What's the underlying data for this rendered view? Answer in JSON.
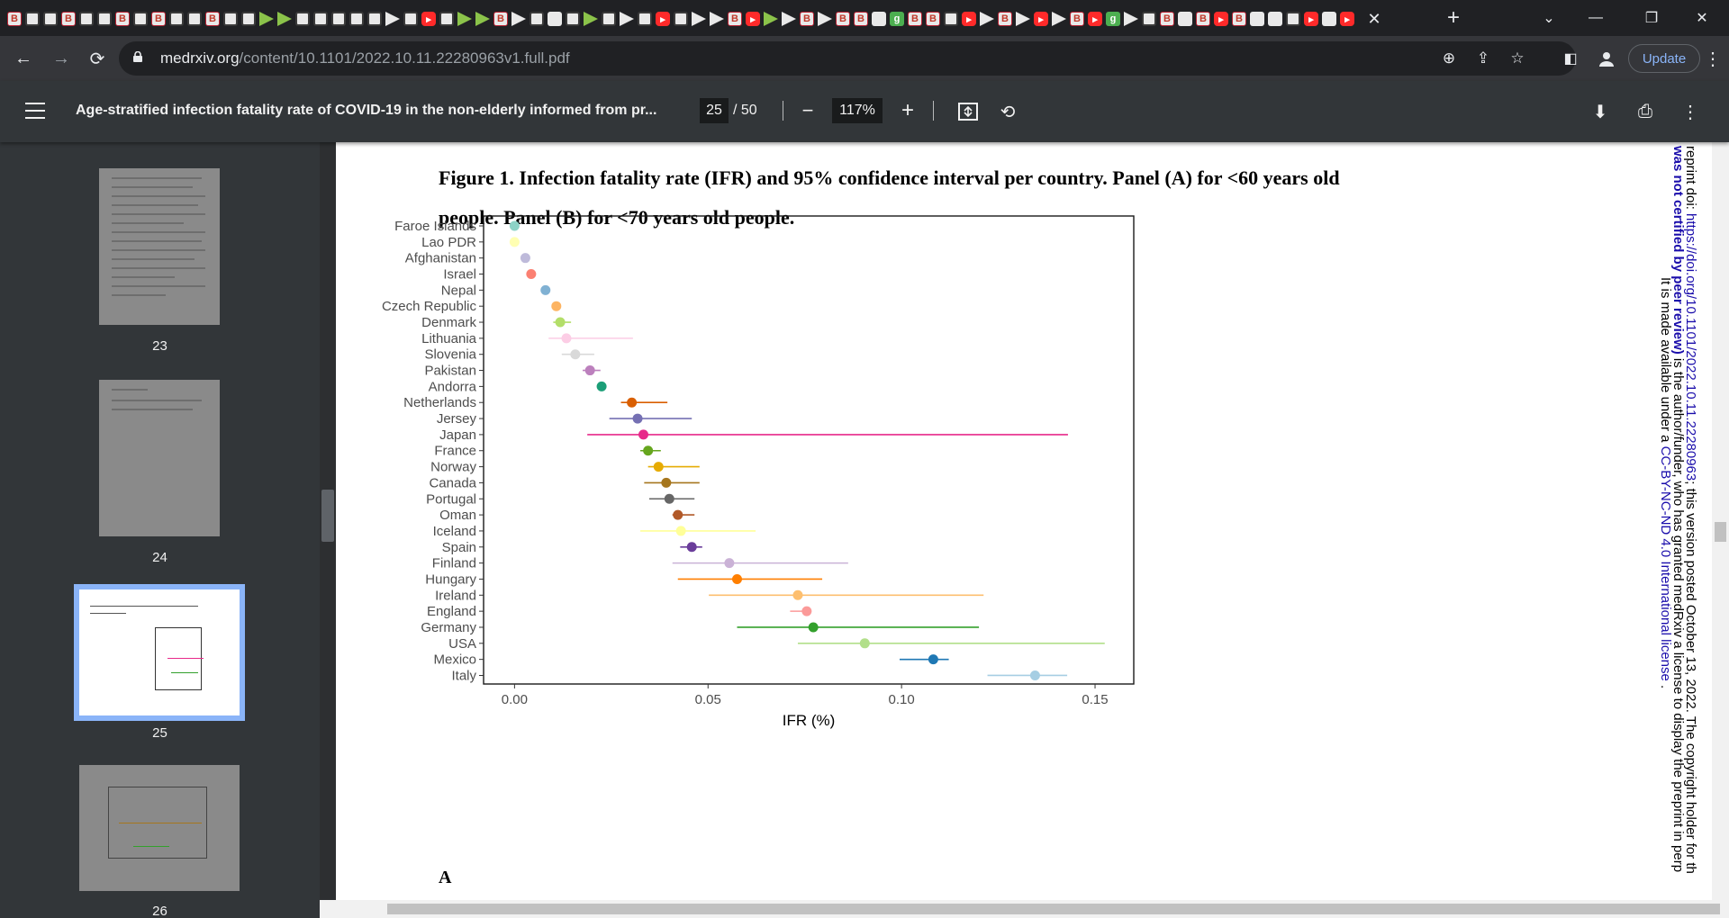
{
  "browser": {
    "tab_favicons": [
      "b",
      "s",
      "s",
      "b",
      "s",
      "s",
      "b",
      "s",
      "b",
      "s",
      "s",
      "b",
      "s",
      "s",
      "p",
      "p",
      "s",
      "s",
      "s",
      "s",
      "s",
      "d",
      "s",
      "y",
      "s",
      "p",
      "p",
      "b",
      "d",
      "s",
      "c",
      "s",
      "p",
      "s",
      "d",
      "s",
      "y",
      "s",
      "d",
      "d",
      "b",
      "y",
      "p",
      "d",
      "b",
      "d",
      "b",
      "b",
      "c",
      "g",
      "b",
      "b",
      "s",
      "y",
      "d",
      "b",
      "d",
      "y",
      "d",
      "b",
      "y",
      "g",
      "d",
      "s",
      "b",
      "c",
      "b",
      "y",
      "b",
      "c",
      "c",
      "s",
      "y",
      "c",
      "y"
    ],
    "active_tab_close": "✕",
    "url_host": "medrxiv.org",
    "url_path": "/content/10.1101/2022.10.11.22280963v1.full.pdf",
    "update_label": "Update"
  },
  "pdf_toolbar": {
    "title": "Age-stratified infection fatality rate of COVID-19 in the non-elderly informed from pr...",
    "current_page": "25",
    "total_pages": "/  50",
    "zoom": "117%"
  },
  "sidebar": {
    "thumbnails": [
      {
        "label": "23",
        "selected": false
      },
      {
        "label": "24",
        "selected": false
      },
      {
        "label": "25",
        "selected": true
      },
      {
        "label": "26",
        "selected": false
      }
    ]
  },
  "page": {
    "figure_caption": "Figure 1. Infection fatality rate (IFR) and 95% confidence interval per country. Panel (A) for <60 years old people. Panel (B) for <70 years old people.",
    "panel_label": "A",
    "preprint_line1_a": "reprint doi: ",
    "preprint_line1_link": "https://doi.org/10.1101/2022.10.11.22280963",
    "preprint_line1_b": "; this version posted October 13, 2022. The copyright holder for th",
    "preprint_line2_a": "was not certified by peer review)",
    "preprint_line2_b": " is the author/funder, who has granted medRxiv a license to display the preprint in perp",
    "preprint_line3_a": "It is made available under a ",
    "preprint_line3_link": "CC-BY-NC-ND 4.0 International license",
    "preprint_line3_b": " ."
  },
  "chart_data": {
    "type": "scatter",
    "subtype": "forest-plot",
    "xlabel": "IFR (%)",
    "xlim": [
      -0.008,
      0.16
    ],
    "xticks": [
      0.0,
      0.05,
      0.1,
      0.15
    ],
    "xtick_labels": [
      "0.00",
      "0.05",
      "0.10",
      "0.15"
    ],
    "grid": false,
    "legend": "none",
    "rows": [
      {
        "country": "Faroe Islands",
        "ifr": 0.0,
        "lo": 0.0,
        "hi": 0.0,
        "color": "#8dd3c7"
      },
      {
        "country": "Lao PDR",
        "ifr": 0.0,
        "lo": 0.0,
        "hi": 0.0,
        "color": "#ffffb3"
      },
      {
        "country": "Afghanistan",
        "ifr": 0.0028,
        "lo": 0.0028,
        "hi": 0.0028,
        "color": "#bebada"
      },
      {
        "country": "Israel",
        "ifr": 0.0043,
        "lo": 0.0043,
        "hi": 0.0043,
        "color": "#fb8072"
      },
      {
        "country": "Nepal",
        "ifr": 0.008,
        "lo": 0.008,
        "hi": 0.008,
        "color": "#80b1d3"
      },
      {
        "country": "Czech Republic",
        "ifr": 0.0108,
        "lo": 0.0108,
        "hi": 0.0108,
        "color": "#fdb462"
      },
      {
        "country": "Denmark",
        "ifr": 0.0118,
        "lo": 0.01,
        "hi": 0.0146,
        "color": "#b3de69"
      },
      {
        "country": "Lithuania",
        "ifr": 0.0134,
        "lo": 0.0088,
        "hi": 0.0306,
        "color": "#fccde5"
      },
      {
        "country": "Slovenia",
        "ifr": 0.0157,
        "lo": 0.0122,
        "hi": 0.0206,
        "color": "#d9d9d9"
      },
      {
        "country": "Pakistan",
        "ifr": 0.0195,
        "lo": 0.0176,
        "hi": 0.0222,
        "color": "#bc80bd"
      },
      {
        "country": "Andorra",
        "ifr": 0.0225,
        "lo": 0.0225,
        "hi": 0.0225,
        "color": "#1b9e77"
      },
      {
        "country": "Netherlands",
        "ifr": 0.0303,
        "lo": 0.0275,
        "hi": 0.0395,
        "color": "#d95f02"
      },
      {
        "country": "Jersey",
        "ifr": 0.0318,
        "lo": 0.0245,
        "hi": 0.0458,
        "color": "#7570b3"
      },
      {
        "country": "Japan",
        "ifr": 0.0333,
        "lo": 0.0188,
        "hi": 0.143,
        "color": "#e7298a"
      },
      {
        "country": "France",
        "ifr": 0.0345,
        "lo": 0.0325,
        "hi": 0.0378,
        "color": "#66a61e"
      },
      {
        "country": "Norway",
        "ifr": 0.0372,
        "lo": 0.0345,
        "hi": 0.0478,
        "color": "#e6ab02"
      },
      {
        "country": "Canada",
        "ifr": 0.0392,
        "lo": 0.0335,
        "hi": 0.0478,
        "color": "#a6761d"
      },
      {
        "country": "Portugal",
        "ifr": 0.04,
        "lo": 0.0348,
        "hi": 0.0465,
        "color": "#666666"
      },
      {
        "country": "Oman",
        "ifr": 0.0422,
        "lo": 0.0408,
        "hi": 0.0465,
        "color": "#b15928"
      },
      {
        "country": "Iceland",
        "ifr": 0.043,
        "lo": 0.0325,
        "hi": 0.0623,
        "color": "#ffff99"
      },
      {
        "country": "Spain",
        "ifr": 0.0458,
        "lo": 0.0428,
        "hi": 0.0485,
        "color": "#6a3d9a"
      },
      {
        "country": "Finland",
        "ifr": 0.0555,
        "lo": 0.0408,
        "hi": 0.0862,
        "color": "#cab2d6"
      },
      {
        "country": "Hungary",
        "ifr": 0.0575,
        "lo": 0.0422,
        "hi": 0.0795,
        "color": "#ff7f00"
      },
      {
        "country": "Ireland",
        "ifr": 0.0732,
        "lo": 0.0502,
        "hi": 0.1212,
        "color": "#fdbf6f"
      },
      {
        "country": "England",
        "ifr": 0.0755,
        "lo": 0.0712,
        "hi": 0.0765,
        "color": "#fb9a99"
      },
      {
        "country": "Germany",
        "ifr": 0.0772,
        "lo": 0.0575,
        "hi": 0.12,
        "color": "#33a02c"
      },
      {
        "country": "USA",
        "ifr": 0.0905,
        "lo": 0.0732,
        "hi": 0.1525,
        "color": "#b2df8a"
      },
      {
        "country": "Mexico",
        "ifr": 0.1082,
        "lo": 0.0995,
        "hi": 0.1122,
        "color": "#1f78b4"
      },
      {
        "country": "Italy",
        "ifr": 0.1345,
        "lo": 0.1222,
        "hi": 0.1428,
        "color": "#a6cee3"
      }
    ]
  }
}
